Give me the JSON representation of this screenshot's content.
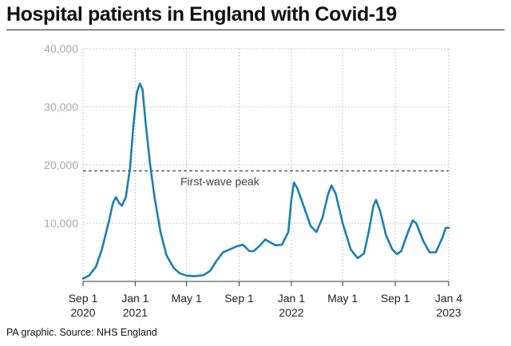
{
  "title": "Hospital patients in England with Covid-19",
  "source": "PA graphic. Source: NHS England",
  "chart_data": {
    "type": "line",
    "title": "Hospital patients in England with Covid-19",
    "xlabel": "",
    "ylabel": "",
    "ylim": [
      0,
      40000
    ],
    "grid": true,
    "legend": "none",
    "line_color": "#1a7fb4",
    "yticks": [
      {
        "value": 10000,
        "label": "10,000"
      },
      {
        "value": 20000,
        "label": "20,000"
      },
      {
        "value": 30000,
        "label": "30,000"
      },
      {
        "value": 40000,
        "label": "40,000"
      }
    ],
    "xticks": [
      {
        "date": "2020-09-01",
        "line1": "Sep 1",
        "line2": "2020"
      },
      {
        "date": "2021-01-01",
        "line1": "Jan 1",
        "line2": "2021"
      },
      {
        "date": "2021-05-01",
        "line1": "May 1",
        "line2": ""
      },
      {
        "date": "2021-09-01",
        "line1": "Sep 1",
        "line2": ""
      },
      {
        "date": "2022-01-01",
        "line1": "Jan 1",
        "line2": "2022"
      },
      {
        "date": "2022-05-01",
        "line1": "May 1",
        "line2": ""
      },
      {
        "date": "2022-09-01",
        "line1": "Sep 1",
        "line2": ""
      },
      {
        "date": "2023-01-04",
        "line1": "Jan 4",
        "line2": "2023"
      }
    ],
    "reference_line": {
      "value": 19000,
      "label": "First-wave peak"
    },
    "series": [
      {
        "points": [
          [
            "2020-09-01",
            500
          ],
          [
            "2020-09-15",
            1000
          ],
          [
            "2020-10-01",
            2500
          ],
          [
            "2020-10-15",
            5500
          ],
          [
            "2020-11-01",
            10500
          ],
          [
            "2020-11-10",
            13500
          ],
          [
            "2020-11-17",
            14500
          ],
          [
            "2020-11-24",
            13500
          ],
          [
            "2020-12-01",
            13000
          ],
          [
            "2020-12-10",
            14500
          ],
          [
            "2020-12-20",
            19500
          ],
          [
            "2020-12-28",
            27000
          ],
          [
            "2021-01-05",
            32500
          ],
          [
            "2021-01-12",
            34000
          ],
          [
            "2021-01-18",
            33000
          ],
          [
            "2021-01-25",
            27500
          ],
          [
            "2021-02-05",
            20000
          ],
          [
            "2021-02-15",
            14500
          ],
          [
            "2021-03-01",
            8500
          ],
          [
            "2021-03-15",
            4500
          ],
          [
            "2021-04-01",
            2300
          ],
          [
            "2021-04-15",
            1400
          ],
          [
            "2021-05-01",
            1000
          ],
          [
            "2021-05-20",
            900
          ],
          [
            "2021-06-10",
            1100
          ],
          [
            "2021-06-25",
            1800
          ],
          [
            "2021-07-10",
            3500
          ],
          [
            "2021-07-25",
            5000
          ],
          [
            "2021-08-10",
            5500
          ],
          [
            "2021-08-25",
            6000
          ],
          [
            "2021-09-10",
            6300
          ],
          [
            "2021-09-25",
            5200
          ],
          [
            "2021-10-05",
            5200
          ],
          [
            "2021-10-20",
            6200
          ],
          [
            "2021-11-01",
            7200
          ],
          [
            "2021-11-15",
            6600
          ],
          [
            "2021-11-25",
            6200
          ],
          [
            "2021-12-10",
            6300
          ],
          [
            "2021-12-25",
            8500
          ],
          [
            "2022-01-01",
            14000
          ],
          [
            "2022-01-07",
            17000
          ],
          [
            "2022-01-15",
            16000
          ],
          [
            "2022-02-01",
            12500
          ],
          [
            "2022-02-15",
            9500
          ],
          [
            "2022-03-01",
            8500
          ],
          [
            "2022-03-15",
            11000
          ],
          [
            "2022-03-28",
            15000
          ],
          [
            "2022-04-05",
            16500
          ],
          [
            "2022-04-15",
            15000
          ],
          [
            "2022-05-01",
            10000
          ],
          [
            "2022-05-20",
            5500
          ],
          [
            "2022-06-05",
            4000
          ],
          [
            "2022-06-20",
            4800
          ],
          [
            "2022-07-01",
            8500
          ],
          [
            "2022-07-12",
            13000
          ],
          [
            "2022-07-18",
            14000
          ],
          [
            "2022-07-28",
            12000
          ],
          [
            "2022-08-10",
            8000
          ],
          [
            "2022-08-25",
            5500
          ],
          [
            "2022-09-05",
            4700
          ],
          [
            "2022-09-15",
            5200
          ],
          [
            "2022-10-01",
            8500
          ],
          [
            "2022-10-12",
            10500
          ],
          [
            "2022-10-20",
            10000
          ],
          [
            "2022-11-05",
            7000
          ],
          [
            "2022-11-20",
            5000
          ],
          [
            "2022-12-05",
            5000
          ],
          [
            "2022-12-20",
            7500
          ],
          [
            "2022-12-28",
            9200
          ],
          [
            "2023-01-04",
            9200
          ]
        ]
      }
    ]
  }
}
